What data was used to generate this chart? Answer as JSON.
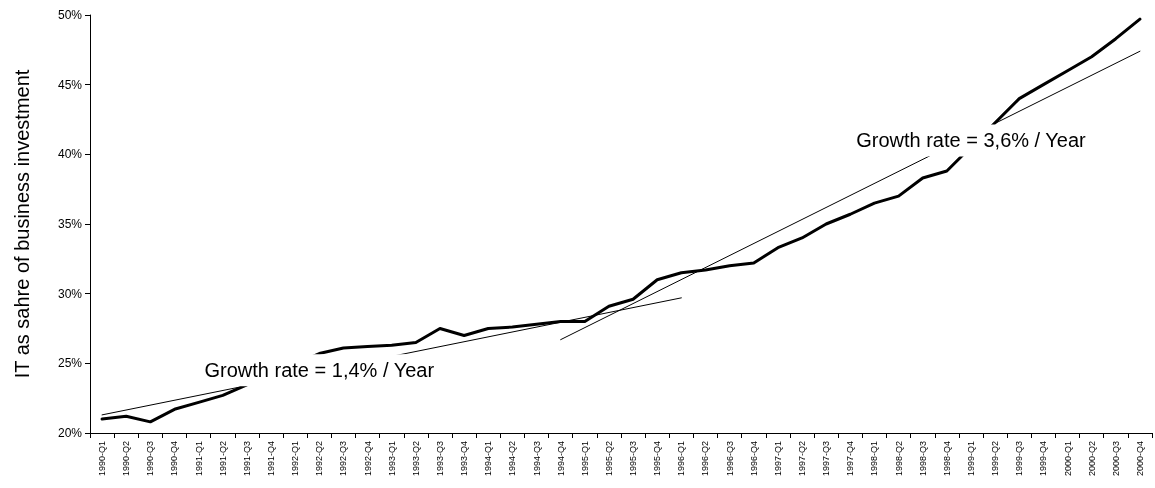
{
  "chart_data": {
    "type": "line",
    "ylabel": "IT as sahre of business investment",
    "categories": [
      "1990-Q1",
      "1990-Q2",
      "1990-Q3",
      "1990-Q4",
      "1991-Q1",
      "1991-Q2",
      "1991-Q3",
      "1991-Q4",
      "1992-Q1",
      "1992-Q2",
      "1992-Q3",
      "1992-Q4",
      "1993-Q1",
      "1993-Q2",
      "1993-Q3",
      "1993-Q4",
      "1994-Q1",
      "1994-Q2",
      "1994-Q3",
      "1994-Q4",
      "1995-Q1",
      "1995-Q2",
      "1995-Q3",
      "1995-Q4",
      "1996-Q1",
      "1996-Q2",
      "1996-Q3",
      "1996-Q4",
      "1997-Q1",
      "1997-Q2",
      "1997-Q3",
      "1997-Q4",
      "1998-Q1",
      "1998-Q2",
      "1998-Q3",
      "1998-Q4",
      "1999-Q1",
      "1999-Q2",
      "1999-Q3",
      "1999-Q4",
      "2000-Q1",
      "2000-Q2",
      "2000-Q3",
      "2000-Q4"
    ],
    "series": [
      {
        "color": "#000000",
        "values": [
          21.0,
          21.2,
          20.8,
          21.7,
          22.2,
          22.7,
          null,
          null,
          null,
          25.7,
          26.1,
          26.2,
          26.3,
          26.5,
          27.5,
          27.0,
          27.5,
          27.6,
          27.8,
          28.0,
          28.0,
          29.1,
          29.6,
          31.0,
          31.5,
          31.7,
          32.0,
          32.2,
          33.3,
          34.0,
          35.0,
          35.7,
          36.5,
          37.0,
          38.3,
          38.8,
          null,
          null,
          44.0,
          45.0,
          46.0,
          47.0,
          48.3,
          49.7
        ]
      },
      {
        "type": "line",
        "color": "#000000",
        "x": [
          "1990-Q1",
          "1996-Q1"
        ],
        "values": [
          21.3,
          29.7
        ]
      },
      {
        "type": "line",
        "color": "#000000",
        "x": [
          "1994-Q4",
          "2000-Q4"
        ],
        "values": [
          26.7,
          47.4
        ]
      }
    ],
    "ylim": [
      20,
      50
    ],
    "yticks": [
      {
        "value": 20,
        "label": "20%"
      },
      {
        "value": 25,
        "label": "25%"
      },
      {
        "value": 30,
        "label": "30%"
      },
      {
        "value": 35,
        "label": "35%"
      },
      {
        "value": 40,
        "label": "40%"
      },
      {
        "value": 45,
        "label": "45%"
      },
      {
        "value": 50,
        "label": "50%"
      }
    ],
    "annotations": [
      {
        "text": "Growth rate = 1,4% / Year",
        "x": "1992-Q2",
        "y": 24.5
      },
      {
        "text": "Growth rate = 3,6% / Year",
        "x": "1999-Q1",
        "y": 41.0
      }
    ],
    "grid": false,
    "marker": "none",
    "line_style": "solid"
  }
}
